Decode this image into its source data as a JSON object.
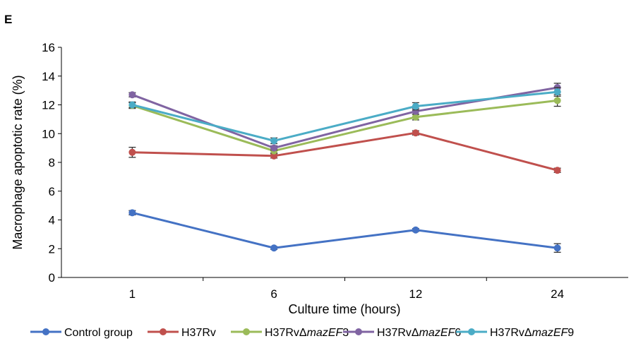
{
  "panel_label": "E",
  "chart_data": {
    "type": "line",
    "categories": [
      "1",
      "6",
      "12",
      "24"
    ],
    "xlabel": "Culture time (hours)",
    "ylabel": "Macrophage apoptotic rate (%)",
    "ylim": [
      0,
      16
    ],
    "yticks": [
      "0",
      "2",
      "4",
      "6",
      "8",
      "10",
      "12",
      "14",
      "16"
    ],
    "grid": false,
    "legend_position": "bottom",
    "series": [
      {
        "name": "Control group",
        "name_prefix": "Control group",
        "name_italic": "",
        "name_suffix": "",
        "color": "#4472c4",
        "values": [
          4.5,
          2.05,
          3.3,
          2.05
        ],
        "errors": [
          0.15,
          0.1,
          0.1,
          0.3
        ]
      },
      {
        "name": "H37Rv",
        "name_prefix": "H37Rv",
        "name_italic": "",
        "name_suffix": "",
        "color": "#c0504d",
        "values": [
          8.7,
          8.45,
          10.05,
          7.45
        ],
        "errors": [
          0.35,
          0.15,
          0.15,
          0.15
        ]
      },
      {
        "name": "H37RvΔmazEF3",
        "name_prefix": "H37RvΔ",
        "name_italic": "mazEF",
        "name_suffix": "3",
        "color": "#9bbb59",
        "values": [
          11.95,
          8.8,
          11.15,
          12.3
        ],
        "errors": [
          0.2,
          0.15,
          0.2,
          0.4
        ]
      },
      {
        "name": "H37RvΔmazEF6",
        "name_prefix": "H37RvΔ",
        "name_italic": "mazEF",
        "name_suffix": "6",
        "color": "#8064a2",
        "values": [
          12.7,
          9.0,
          11.55,
          13.2
        ],
        "errors": [
          0.15,
          0.15,
          0.2,
          0.3
        ]
      },
      {
        "name": "H37RvΔmazEF9",
        "name_prefix": "H37RvΔ",
        "name_italic": "mazEF",
        "name_suffix": "9",
        "color": "#4bacc6",
        "values": [
          12.0,
          9.5,
          11.9,
          12.9
        ],
        "errors": [
          0.2,
          0.2,
          0.25,
          0.3
        ]
      }
    ]
  }
}
